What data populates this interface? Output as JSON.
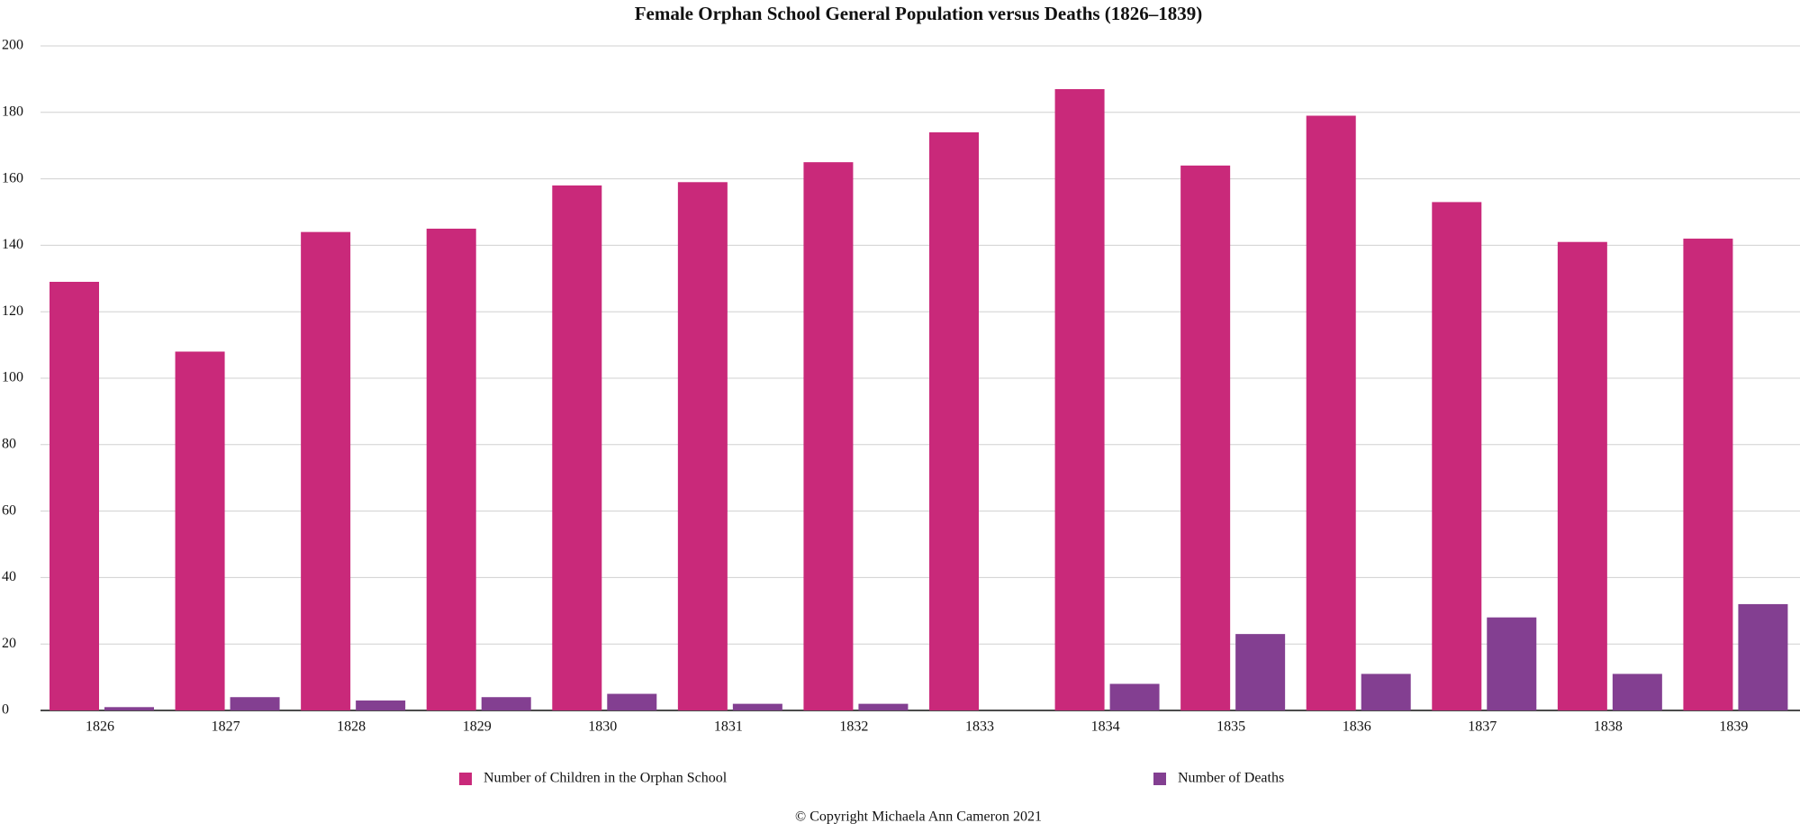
{
  "chart_data": {
    "type": "bar",
    "title": "Female Orphan School General Population versus Deaths (1826–1839)",
    "categories": [
      "1826",
      "1827",
      "1828",
      "1829",
      "1830",
      "1831",
      "1832",
      "1833",
      "1834",
      "1835",
      "1836",
      "1837",
      "1838",
      "1839"
    ],
    "series": [
      {
        "name": "Number of Children in the Orphan School",
        "color": "#c9297a",
        "values": [
          129,
          108,
          144,
          145,
          158,
          159,
          165,
          174,
          187,
          164,
          179,
          153,
          141,
          142
        ]
      },
      {
        "name": "Number of Deaths",
        "color": "#833f91",
        "values": [
          1,
          4,
          3,
          4,
          5,
          2,
          2,
          0,
          8,
          23,
          11,
          28,
          11,
          32
        ]
      }
    ],
    "ylim": [
      0,
      200
    ],
    "yticks": [
      0,
      20,
      40,
      60,
      80,
      100,
      120,
      140,
      160,
      180,
      200
    ],
    "grid": true,
    "legend": "bottom",
    "annotation": "© Copyright Michaela Ann Cameron 2021"
  }
}
